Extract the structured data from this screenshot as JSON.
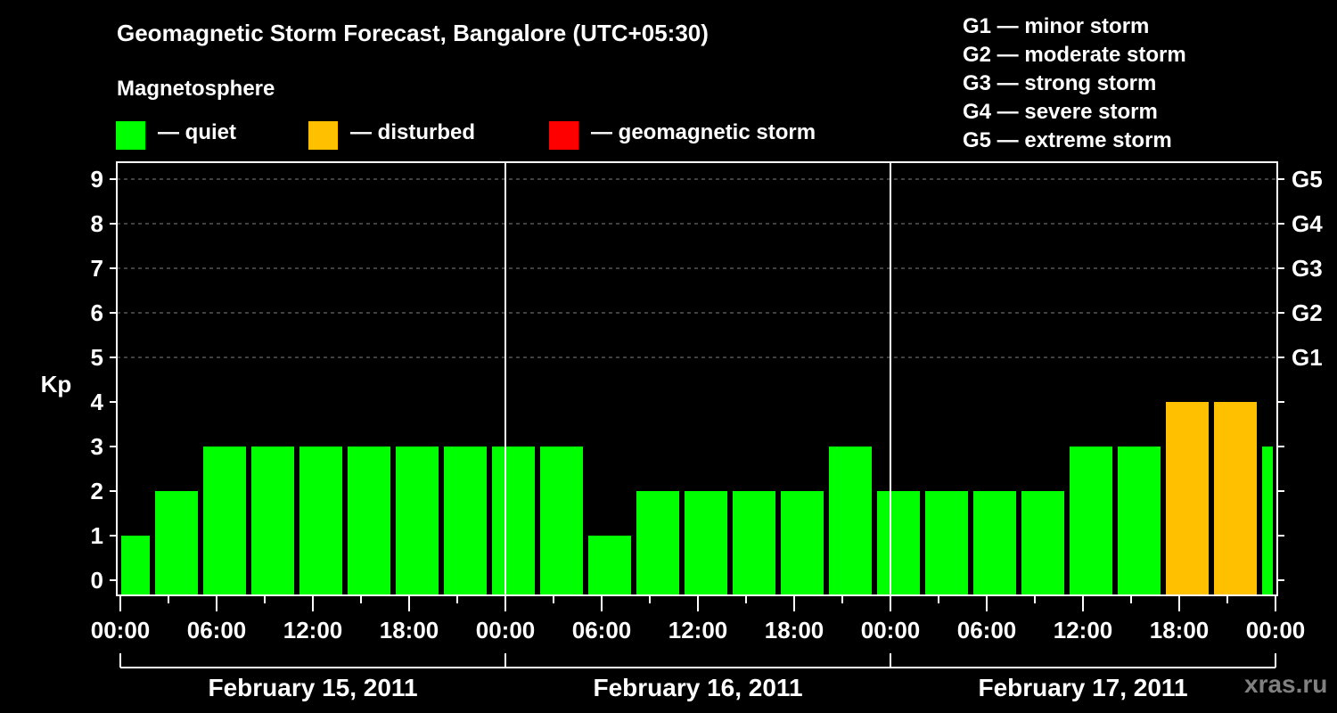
{
  "header": {
    "title": "Geomagnetic Storm Forecast, Bangalore (UTC+05:30)",
    "subtitle": "Magnetosphere"
  },
  "legend": {
    "items": [
      {
        "label": "— quiet",
        "color": "#00ff00"
      },
      {
        "label": "— disturbed",
        "color": "#ffc000"
      },
      {
        "label": "— geomagnetic storm",
        "color": "#ff0000"
      }
    ]
  },
  "storm_scale": {
    "items": [
      "G1 — minor storm",
      "G2 — moderate storm",
      "G3 — strong storm",
      "G4 — severe storm",
      "G5 — extreme storm"
    ]
  },
  "watermark": "xras.ru",
  "chart_data": {
    "type": "bar",
    "title": "Geomagnetic Storm Forecast, Bangalore (UTC+05:30)",
    "ylabel": "Kp",
    "xlabel": "",
    "ylim": [
      0,
      9
    ],
    "yticks": [
      0,
      1,
      2,
      3,
      4,
      5,
      6,
      7,
      8,
      9
    ],
    "right_axis_labels": [
      {
        "kp": 5,
        "label": "G1"
      },
      {
        "kp": 6,
        "label": "G2"
      },
      {
        "kp": 7,
        "label": "G3"
      },
      {
        "kp": 8,
        "label": "G4"
      },
      {
        "kp": 9,
        "label": "G5"
      }
    ],
    "grid": "dashed horizontal at Kp 5-9",
    "xtick_labels": [
      "00:00",
      "06:00",
      "12:00",
      "18:00",
      "00:00",
      "06:00",
      "12:00",
      "18:00",
      "00:00",
      "06:00",
      "12:00",
      "18:00",
      "00:00"
    ],
    "days": [
      "February 15, 2011",
      "February 16, 2011",
      "February 17, 2011"
    ],
    "bar_interval_hours": 3,
    "first_bar_hours": [
      0,
      1.8
    ],
    "categories": [
      "Feb15 00:00",
      "Feb15 02:00",
      "Feb15 05:00",
      "Feb15 08:00",
      "Feb15 11:00",
      "Feb15 14:00",
      "Feb15 17:00",
      "Feb15 20:00",
      "Feb15 23:00",
      "Feb16 02:00",
      "Feb16 05:00",
      "Feb16 08:00",
      "Feb16 11:00",
      "Feb16 14:00",
      "Feb16 17:00",
      "Feb16 20:00",
      "Feb16 23:00",
      "Feb17 02:00",
      "Feb17 05:00",
      "Feb17 08:00",
      "Feb17 11:00",
      "Feb17 14:00",
      "Feb17 17:00",
      "Feb17 20:00",
      "Feb17 23:00"
    ],
    "values": [
      1,
      2,
      3,
      3,
      3,
      3,
      3,
      3,
      3,
      3,
      1,
      2,
      2,
      2,
      2,
      3,
      2,
      2,
      2,
      2,
      3,
      3,
      4,
      4,
      3
    ],
    "status": [
      "quiet",
      "quiet",
      "quiet",
      "quiet",
      "quiet",
      "quiet",
      "quiet",
      "quiet",
      "quiet",
      "quiet",
      "quiet",
      "quiet",
      "quiet",
      "quiet",
      "quiet",
      "quiet",
      "quiet",
      "quiet",
      "quiet",
      "quiet",
      "quiet",
      "quiet",
      "disturbed",
      "disturbed",
      "quiet"
    ],
    "colors": {
      "quiet": "#00ff00",
      "disturbed": "#ffc000",
      "storm": "#ff0000"
    }
  }
}
